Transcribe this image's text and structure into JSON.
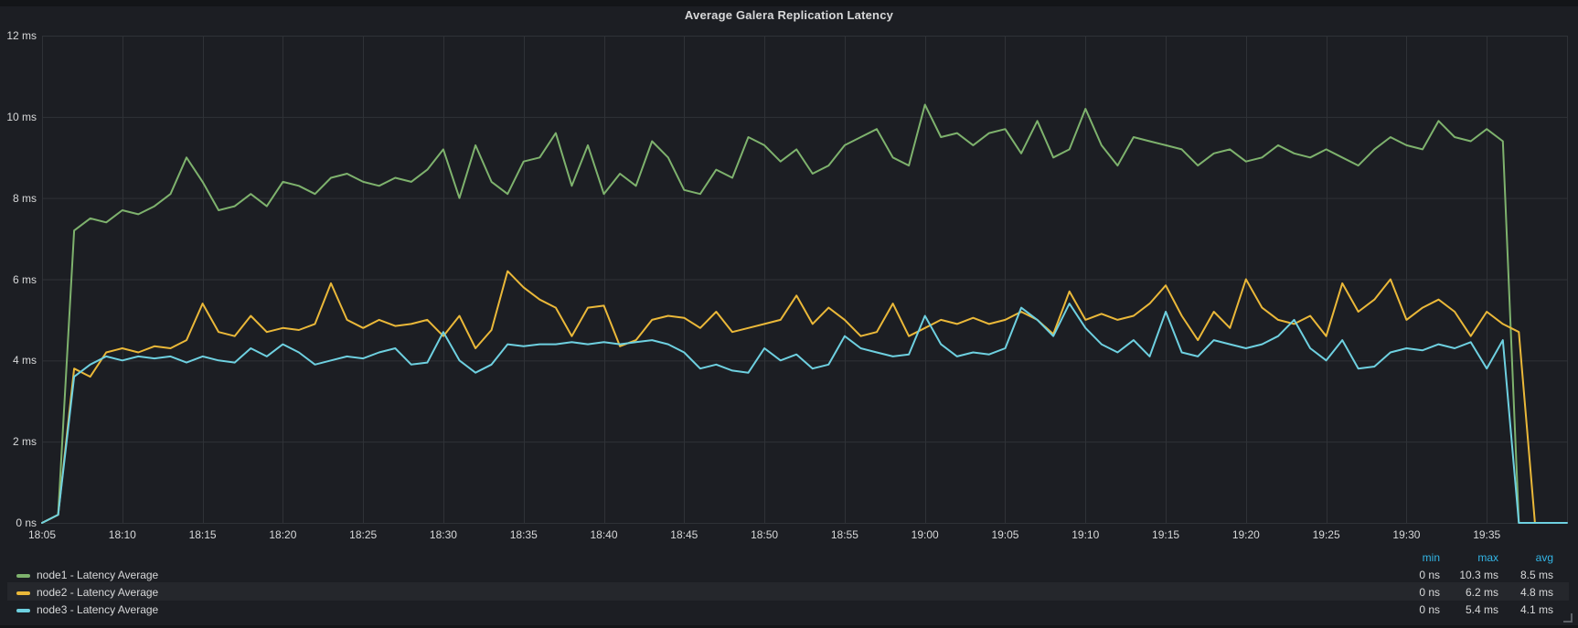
{
  "panel": {
    "title": "Average Galera Replication Latency"
  },
  "colors": {
    "page_bg": "#131518",
    "panel_bg": "#1c1e23",
    "grid": "#2f3237",
    "axis_text": "#d8d9da",
    "stat_header_blue": "#33b5e5",
    "series_green": "#7EB26D",
    "series_yellow": "#EAB839",
    "series_cyan": "#6ED0E0"
  },
  "legend": {
    "header": {
      "min": "min",
      "max": "max",
      "avg": "avg"
    },
    "rows": [
      {
        "label": "node1 - Latency Average",
        "min": "0 ns",
        "max": "10.3 ms",
        "avg": "8.5 ms"
      },
      {
        "label": "node2 - Latency Average",
        "min": "0 ns",
        "max": "6.2 ms",
        "avg": "4.8 ms"
      },
      {
        "label": "node3 - Latency Average",
        "min": "0 ns",
        "max": "5.4 ms",
        "avg": "4.1 ms"
      }
    ]
  },
  "chart_data": {
    "type": "line",
    "title": "Average Galera Replication Latency",
    "x_start": "18:05",
    "x_step_minutes": 1,
    "x_ticks": {
      "minutes": [
        0,
        5,
        10,
        15,
        20,
        25,
        30,
        35,
        40,
        45,
        50,
        55,
        60,
        65,
        70,
        75,
        80,
        85,
        90
      ],
      "labels": [
        "18:05",
        "18:10",
        "18:15",
        "18:20",
        "18:25",
        "18:30",
        "18:35",
        "18:40",
        "18:45",
        "18:50",
        "18:55",
        "19:00",
        "19:05",
        "19:10",
        "19:15",
        "19:20",
        "19:25",
        "19:30",
        "19:35"
      ]
    },
    "y_ticks": {
      "values": [
        12,
        10,
        8,
        6,
        4,
        2,
        0
      ],
      "labels": [
        "12 ms",
        "10 ms",
        "8 ms",
        "6 ms",
        "4 ms",
        "2 ms",
        "0 ns"
      ]
    },
    "ylim": [
      0,
      12
    ],
    "y_unit": "ms",
    "grid": true,
    "legend_position": "bottom",
    "series": [
      {
        "name": "node1 - Latency Average",
        "color": "#7EB26D",
        "stats": {
          "min": "0 ns",
          "max": "10.3 ms",
          "avg": "8.5 ms"
        },
        "values": [
          0,
          0.2,
          7.2,
          7.5,
          7.4,
          7.7,
          7.6,
          7.8,
          8.1,
          9.0,
          8.4,
          7.7,
          7.8,
          8.1,
          7.8,
          8.4,
          8.3,
          8.1,
          8.5,
          8.6,
          8.4,
          8.3,
          8.5,
          8.4,
          8.7,
          9.2,
          8.0,
          9.3,
          8.4,
          8.1,
          8.9,
          9.0,
          9.6,
          8.3,
          9.3,
          8.1,
          8.6,
          8.3,
          9.4,
          9.0,
          8.2,
          8.1,
          8.7,
          8.5,
          9.5,
          9.3,
          8.9,
          9.2,
          8.6,
          8.8,
          9.3,
          9.5,
          9.7,
          9.0,
          8.8,
          10.3,
          9.5,
          9.6,
          9.3,
          9.6,
          9.7,
          9.1,
          9.9,
          9.0,
          9.2,
          10.2,
          9.3,
          8.8,
          9.5,
          9.4,
          9.3,
          9.2,
          8.8,
          9.1,
          9.2,
          8.9,
          9.0,
          9.3,
          9.1,
          9.0,
          9.2,
          9.0,
          8.8,
          9.2,
          9.5,
          9.3,
          9.2,
          9.9,
          9.5,
          9.4,
          9.7,
          9.4,
          0,
          0
        ]
      },
      {
        "name": "node2 - Latency Average",
        "color": "#EAB839",
        "stats": {
          "min": "0 ns",
          "max": "6.2 ms",
          "avg": "4.8 ms"
        },
        "values": [
          0,
          0.2,
          3.8,
          3.6,
          4.2,
          4.3,
          4.2,
          4.35,
          4.3,
          4.5,
          5.4,
          4.7,
          4.6,
          5.1,
          4.7,
          4.8,
          4.75,
          4.9,
          5.9,
          5.0,
          4.8,
          5.0,
          4.85,
          4.9,
          5.0,
          4.6,
          5.1,
          4.3,
          4.75,
          6.2,
          5.8,
          5.5,
          5.3,
          4.6,
          5.3,
          5.35,
          4.35,
          4.5,
          5.0,
          5.1,
          5.05,
          4.8,
          5.2,
          4.7,
          4.8,
          4.9,
          5.0,
          5.6,
          4.9,
          5.3,
          5.0,
          4.6,
          4.7,
          5.4,
          4.6,
          4.8,
          5.0,
          4.9,
          5.05,
          4.9,
          5.0,
          5.2,
          5.0,
          4.65,
          5.7,
          5.0,
          5.15,
          5.0,
          5.1,
          5.4,
          5.85,
          5.1,
          4.5,
          5.2,
          4.8,
          6.0,
          5.3,
          5.0,
          4.9,
          5.1,
          4.6,
          5.9,
          5.2,
          5.5,
          6.0,
          5.0,
          5.3,
          5.5,
          5.2,
          4.6,
          5.2,
          4.9,
          4.7,
          0
        ]
      },
      {
        "name": "node3 - Latency Average",
        "color": "#6ED0E0",
        "stats": {
          "min": "0 ns",
          "max": "5.4 ms",
          "avg": "4.1 ms"
        },
        "values": [
          0,
          0.2,
          3.6,
          3.9,
          4.1,
          4.0,
          4.1,
          4.05,
          4.1,
          3.95,
          4.1,
          4.0,
          3.95,
          4.3,
          4.1,
          4.4,
          4.2,
          3.9,
          4.0,
          4.1,
          4.05,
          4.2,
          4.3,
          3.9,
          3.95,
          4.7,
          4.0,
          3.7,
          3.9,
          4.4,
          4.35,
          4.4,
          4.4,
          4.45,
          4.4,
          4.45,
          4.4,
          4.45,
          4.5,
          4.4,
          4.2,
          3.8,
          3.9,
          3.75,
          3.7,
          4.3,
          4.0,
          4.15,
          3.8,
          3.9,
          4.6,
          4.3,
          4.2,
          4.1,
          4.15,
          5.1,
          4.4,
          4.1,
          4.2,
          4.15,
          4.3,
          5.3,
          5.0,
          4.6,
          5.4,
          4.8,
          4.4,
          4.2,
          4.5,
          4.1,
          5.2,
          4.2,
          4.1,
          4.5,
          4.4,
          4.3,
          4.4,
          4.6,
          5.0,
          4.3,
          4.0,
          4.5,
          3.8,
          3.85,
          4.2,
          4.3,
          4.25,
          4.4,
          4.3,
          4.45,
          3.8,
          4.5,
          0,
          0,
          0,
          0
        ]
      }
    ]
  }
}
